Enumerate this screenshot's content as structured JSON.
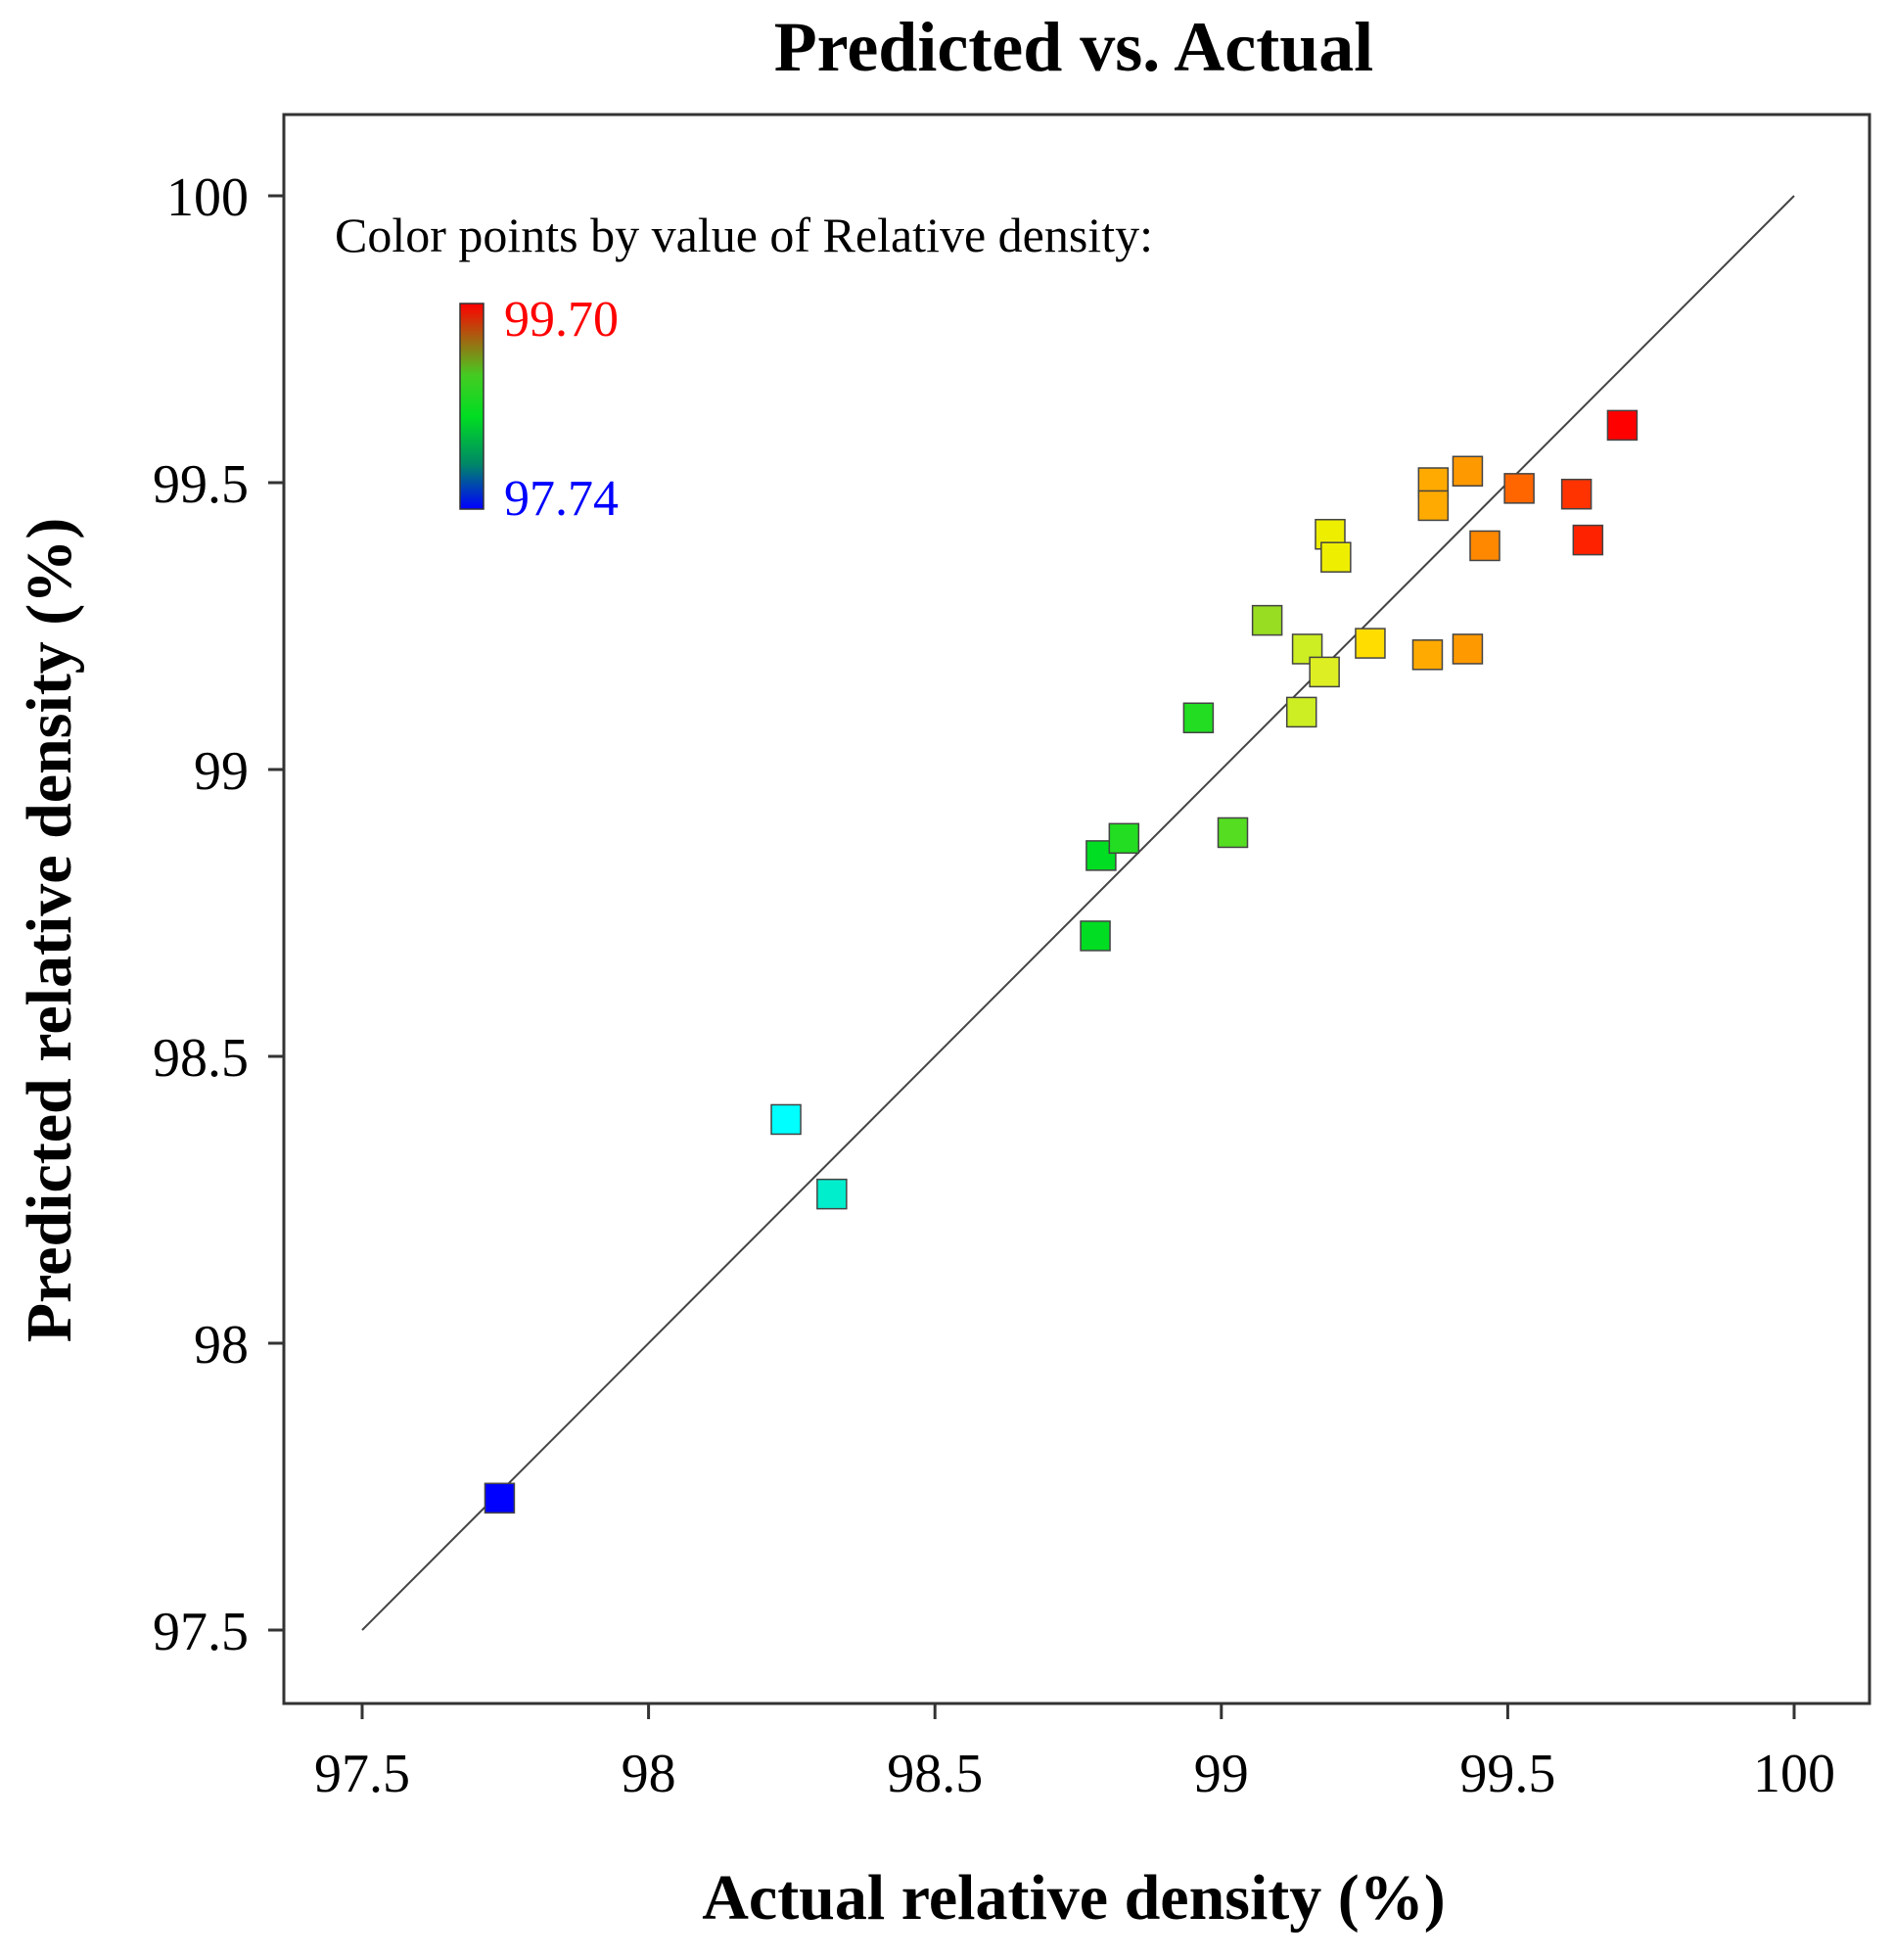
{
  "chart_data": {
    "type": "scatter",
    "title": "Predicted vs. Actual",
    "xlabel": "Actual relative density (%)",
    "ylabel": "Predicted relative density (%)",
    "xlim": [
      97.5,
      100
    ],
    "ylim": [
      97.5,
      100
    ],
    "x_ticks": [
      "97.5",
      "98",
      "98.5",
      "99",
      "99.5",
      "100"
    ],
    "y_ticks": [
      "97.5",
      "98",
      "98.5",
      "99",
      "99.5",
      "100"
    ],
    "reference_line": {
      "from": [
        97.5,
        97.5
      ],
      "to": [
        100,
        100
      ]
    },
    "colorbar": {
      "title": "Color points by value of Relative density:",
      "max_label": "99.70",
      "min_label": "97.74",
      "max_color": "#ff0000",
      "min_color": "#0000ff"
    },
    "marker": "square",
    "grid": false,
    "points": [
      {
        "x": 97.74,
        "y": 97.73,
        "color": "#0000ff"
      },
      {
        "x": 98.24,
        "y": 98.39,
        "color": "#00ffff"
      },
      {
        "x": 98.32,
        "y": 98.26,
        "color": "#00eecc"
      },
      {
        "x": 98.78,
        "y": 98.71,
        "color": "#00dd22"
      },
      {
        "x": 98.79,
        "y": 98.85,
        "color": "#00dd22"
      },
      {
        "x": 98.83,
        "y": 98.88,
        "color": "#22dd22"
      },
      {
        "x": 98.96,
        "y": 99.09,
        "color": "#22dd22"
      },
      {
        "x": 99.02,
        "y": 98.89,
        "color": "#55dd22"
      },
      {
        "x": 99.08,
        "y": 99.26,
        "color": "#99dd22"
      },
      {
        "x": 99.14,
        "y": 99.1,
        "color": "#ccee22"
      },
      {
        "x": 99.15,
        "y": 99.21,
        "color": "#ccee22"
      },
      {
        "x": 99.18,
        "y": 99.17,
        "color": "#ddee22"
      },
      {
        "x": 99.19,
        "y": 99.41,
        "color": "#eeee00"
      },
      {
        "x": 99.2,
        "y": 99.37,
        "color": "#eeee00"
      },
      {
        "x": 99.26,
        "y": 99.22,
        "color": "#ffdd00"
      },
      {
        "x": 99.36,
        "y": 99.2,
        "color": "#ffaa00"
      },
      {
        "x": 99.37,
        "y": 99.5,
        "color": "#ffaa00"
      },
      {
        "x": 99.37,
        "y": 99.46,
        "color": "#ffaa00"
      },
      {
        "x": 99.43,
        "y": 99.52,
        "color": "#ff9900"
      },
      {
        "x": 99.43,
        "y": 99.21,
        "color": "#ff9900"
      },
      {
        "x": 99.46,
        "y": 99.39,
        "color": "#ff8800"
      },
      {
        "x": 99.52,
        "y": 99.49,
        "color": "#ff6600"
      },
      {
        "x": 99.62,
        "y": 99.48,
        "color": "#ff3300"
      },
      {
        "x": 99.64,
        "y": 99.4,
        "color": "#ff2200"
      },
      {
        "x": 99.7,
        "y": 99.6,
        "color": "#ff0000"
      }
    ]
  }
}
